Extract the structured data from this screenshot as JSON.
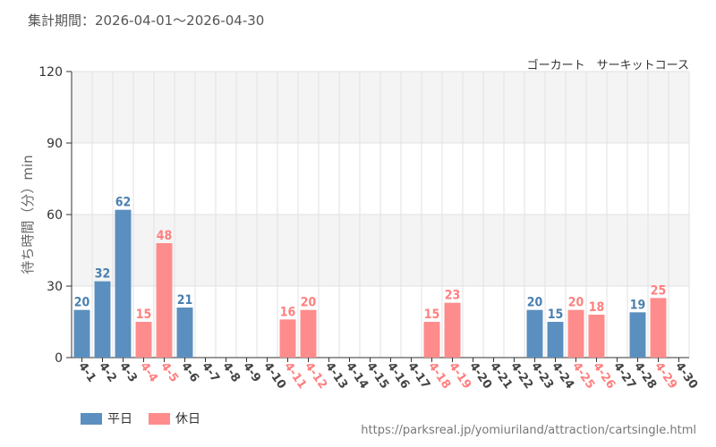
{
  "header": {
    "period": "集計期間：2026-04-01～2026-04-30",
    "ride": "ゴーカート　サーキットコース"
  },
  "footer": {
    "source": "https://parksreal.jp/yomiuriland/attraction/cartsingle.html"
  },
  "colors": {
    "weekday": "#5b8fbf",
    "holiday": "#ff8c8c",
    "weekday_text": "#4a7fb0",
    "holiday_text": "#ff7f7f",
    "band": "#f4f4f4",
    "grid": "#e2e2e2"
  },
  "chart_data": {
    "type": "bar",
    "ylabel": "待ち時間（分）min",
    "ylim": [
      0,
      120
    ],
    "yticks": [
      0,
      30,
      60,
      90,
      120
    ],
    "legend": [
      {
        "name": "平日",
        "key": "weekday"
      },
      {
        "name": "休日",
        "key": "holiday"
      }
    ],
    "categories": [
      "4-1",
      "4-2",
      "4-3",
      "4-4",
      "4-5",
      "4-6",
      "4-7",
      "4-8",
      "4-9",
      "4-10",
      "4-11",
      "4-12",
      "4-13",
      "4-14",
      "4-15",
      "4-16",
      "4-17",
      "4-18",
      "4-19",
      "4-20",
      "4-21",
      "4-22",
      "4-23",
      "4-24",
      "4-25",
      "4-26",
      "4-27",
      "4-28",
      "4-29",
      "4-30"
    ],
    "day_type": [
      "weekday",
      "weekday",
      "weekday",
      "holiday",
      "holiday",
      "weekday",
      "weekday",
      "weekday",
      "weekday",
      "weekday",
      "holiday",
      "holiday",
      "weekday",
      "weekday",
      "weekday",
      "weekday",
      "weekday",
      "holiday",
      "holiday",
      "weekday",
      "weekday",
      "weekday",
      "weekday",
      "weekday",
      "holiday",
      "holiday",
      "weekday",
      "weekday",
      "holiday",
      "weekday"
    ],
    "values": [
      20,
      32,
      62,
      15,
      48,
      21,
      null,
      null,
      null,
      null,
      16,
      20,
      null,
      null,
      null,
      null,
      null,
      15,
      23,
      null,
      null,
      null,
      20,
      15,
      20,
      18,
      null,
      19,
      25,
      null
    ]
  }
}
